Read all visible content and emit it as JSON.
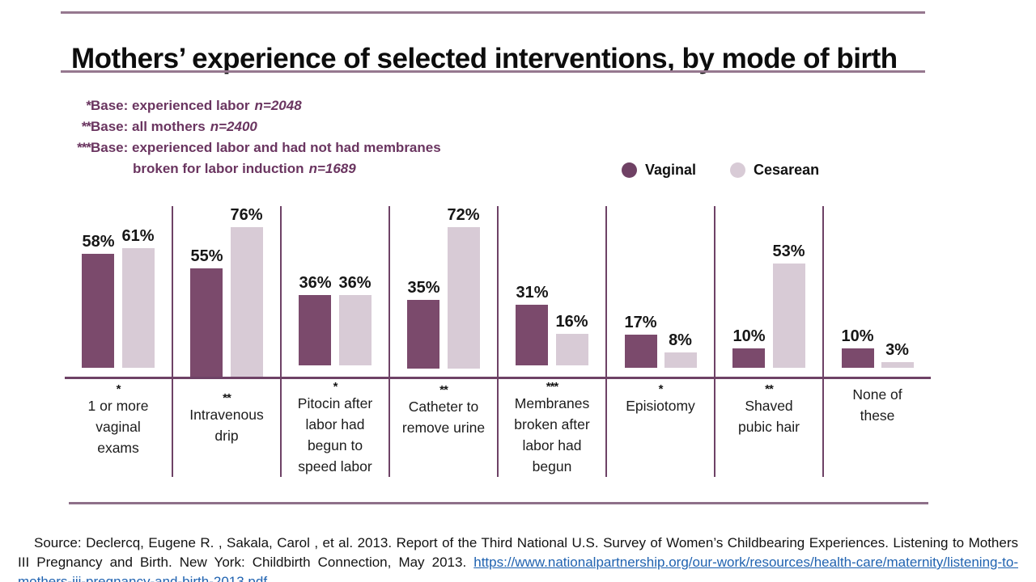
{
  "title": "Mothers’ experience of selected interventions, by mode of birth",
  "notes": [
    {
      "stars": "*",
      "label": "Base: experienced labor",
      "n": "n=2048"
    },
    {
      "stars": "**",
      "label": "Base: all mothers",
      "n": "n=2400"
    },
    {
      "stars": "***",
      "label": "Base: experienced labor and had not had membranes",
      "n": ""
    },
    {
      "stars": "",
      "label": "broken for labor induction",
      "n": "n=1689"
    }
  ],
  "legend": [
    {
      "label": "Vaginal",
      "color": "#6f4164"
    },
    {
      "label": "Cesarean",
      "color": "#d8cbd6"
    }
  ],
  "chart_data": {
    "type": "bar",
    "title": "Mothers’ experience of selected interventions, by mode of birth",
    "value_suffix": "%",
    "ylim": [
      0,
      100
    ],
    "grid": false,
    "legend_position": "top-right",
    "categories": [
      {
        "stars": "*",
        "label": "1 or more\nvaginal\nexams"
      },
      {
        "stars": "**",
        "label": "Intravenous\ndrip"
      },
      {
        "stars": "*",
        "label": "Pitocin after\nlabor had\nbegun to\nspeed labor"
      },
      {
        "stars": "**",
        "label": "Catheter to\nremove urine"
      },
      {
        "stars": "***",
        "label": "Membranes\nbroken after\nlabor had\nbegun"
      },
      {
        "stars": "*",
        "label": "Episiotomy"
      },
      {
        "stars": "**",
        "label": "Shaved\npubic hair"
      },
      {
        "stars": "",
        "label": "None of\nthese"
      }
    ],
    "series": [
      {
        "name": "Vaginal",
        "color": "#7b4a6c",
        "values": [
          58,
          55,
          36,
          35,
          31,
          17,
          10,
          10
        ]
      },
      {
        "name": "Cesarean",
        "color": "#d8cbd6",
        "values": [
          61,
          76,
          36,
          72,
          16,
          8,
          53,
          3
        ]
      }
    ]
  },
  "colors": {
    "axis_line": "#6e4266",
    "title_rule": "#96788f",
    "notes_text": "#6a3560",
    "link_blue": "#1f62b0"
  },
  "source": {
    "prefix": "Source",
    "text": ": Declercq, Eugene R. , Sakala,  Carol , et al. 2013. Report of the Third National U.S. Survey of Women’s Childbearing Experiences. Listening to Mothers III Pregnancy and Birth. New York: Childbirth Connection, May 2013. ",
    "link": "https://www.nationalpartnership.org/our-work/resources/health-care/maternity/listening-to-mothers-iii-pregnancy-and-birth-2013.pdf"
  }
}
